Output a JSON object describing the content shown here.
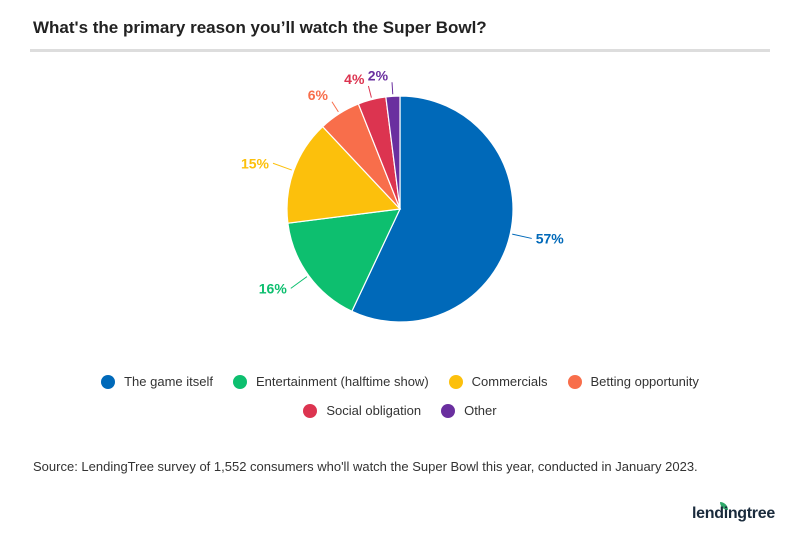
{
  "chart_data": {
    "type": "pie",
    "title": "What's the primary reason you’ll watch the Super Bowl?",
    "categories": [
      "The game itself",
      "Entertainment (halftime show)",
      "Commercials",
      "Betting opportunity",
      "Social obligation",
      "Other"
    ],
    "values": [
      57,
      16,
      15,
      6,
      4,
      2
    ],
    "labels": [
      "57%",
      "16%",
      "15%",
      "6%",
      "4%",
      "2%"
    ],
    "colors": [
      "#0069b9",
      "#0dbf6f",
      "#fcc00c",
      "#f86e4b",
      "#dc3450",
      "#6a2f9f"
    ],
    "legend": "bottom"
  },
  "source": "Source: LendingTree survey of 1,552 consumers who'll watch the Super Bowl this year, conducted in January 2023.",
  "logo": "lendingtree"
}
